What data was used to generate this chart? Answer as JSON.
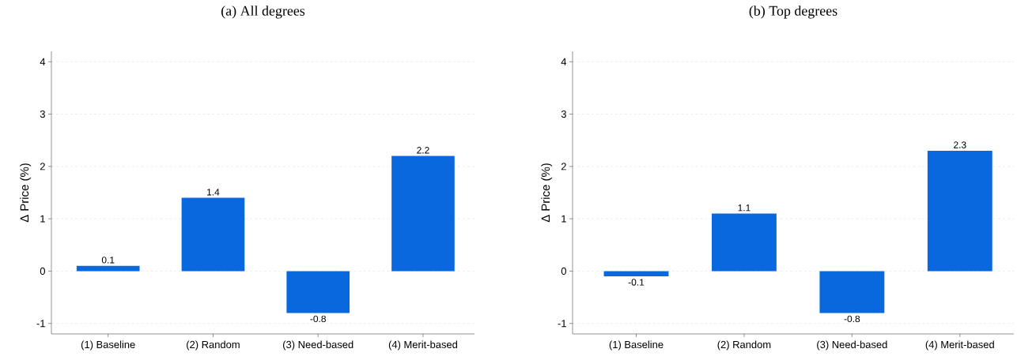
{
  "chart_data": [
    {
      "type": "bar",
      "title": "(a) All degrees",
      "ylabel": "Δ Price (%)",
      "categories": [
        "(1) Baseline",
        "(2) Random",
        "(3) Need-based",
        "(4) Merit-based"
      ],
      "values": [
        0.1,
        1.4,
        -0.8,
        2.2
      ],
      "color": "#0a68de",
      "ylim": [
        -1.2,
        4.2
      ],
      "yticks": [
        -1,
        0,
        1,
        2,
        3,
        4
      ],
      "grid": "y",
      "data_labels": true
    },
    {
      "type": "bar",
      "title": "(b) Top degrees",
      "ylabel": "Δ Price (%)",
      "categories": [
        "(1) Baseline",
        "(2) Random",
        "(3) Need-based",
        "(4) Merit-based"
      ],
      "values": [
        -0.1,
        1.1,
        -0.8,
        2.3
      ],
      "color": "#0a68de",
      "ylim": [
        -1.2,
        4.2
      ],
      "yticks": [
        -1,
        0,
        1,
        2,
        3,
        4
      ],
      "grid": "y",
      "data_labels": true
    }
  ]
}
